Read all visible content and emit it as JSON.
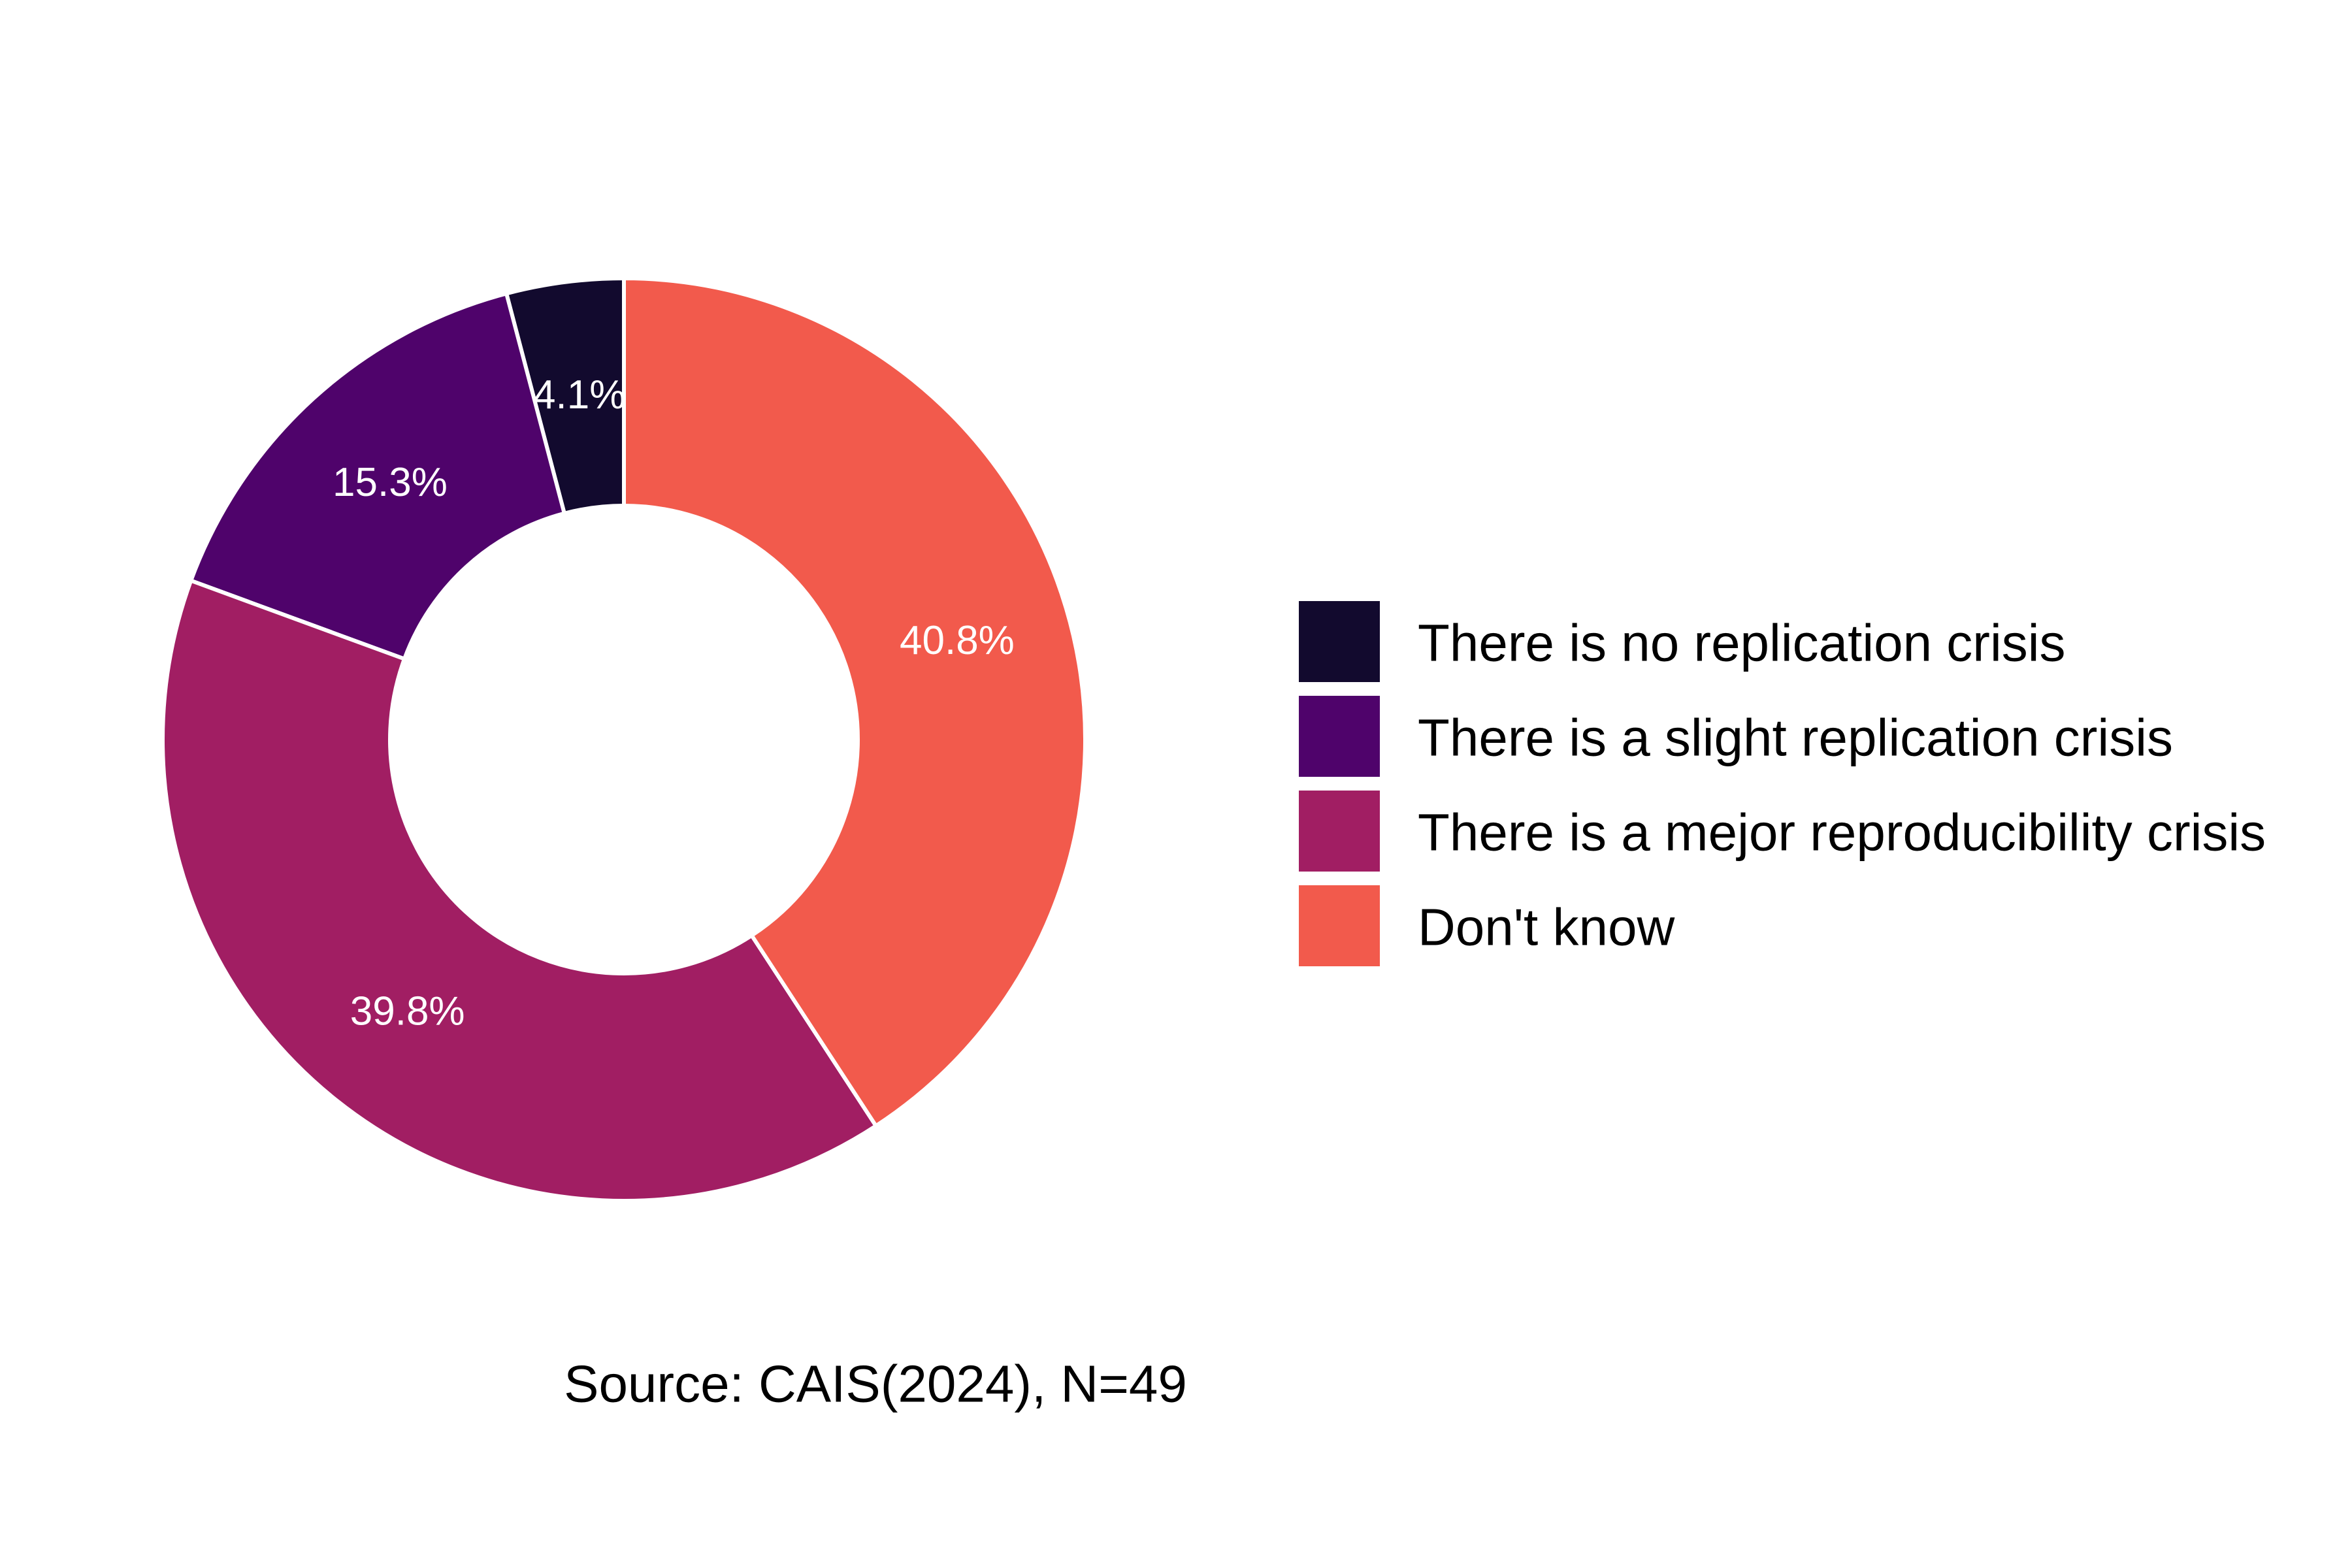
{
  "chart_data": {
    "type": "pie",
    "donut": true,
    "categories": [
      "There is no replication crisis",
      "There is a slight replication crisis",
      "There is a mejor reproducibility crisis",
      "Don't know"
    ],
    "values": [
      4.1,
      15.3,
      39.8,
      40.8
    ],
    "value_labels": [
      "4.1%",
      "15.3%",
      "39.8%",
      "40.8%"
    ],
    "colors": [
      "#120a2e",
      "#4f036b",
      "#a11e63",
      "#f25a4c"
    ],
    "legend_position": "right",
    "caption": "Source: CAIS(2024), N=49"
  }
}
